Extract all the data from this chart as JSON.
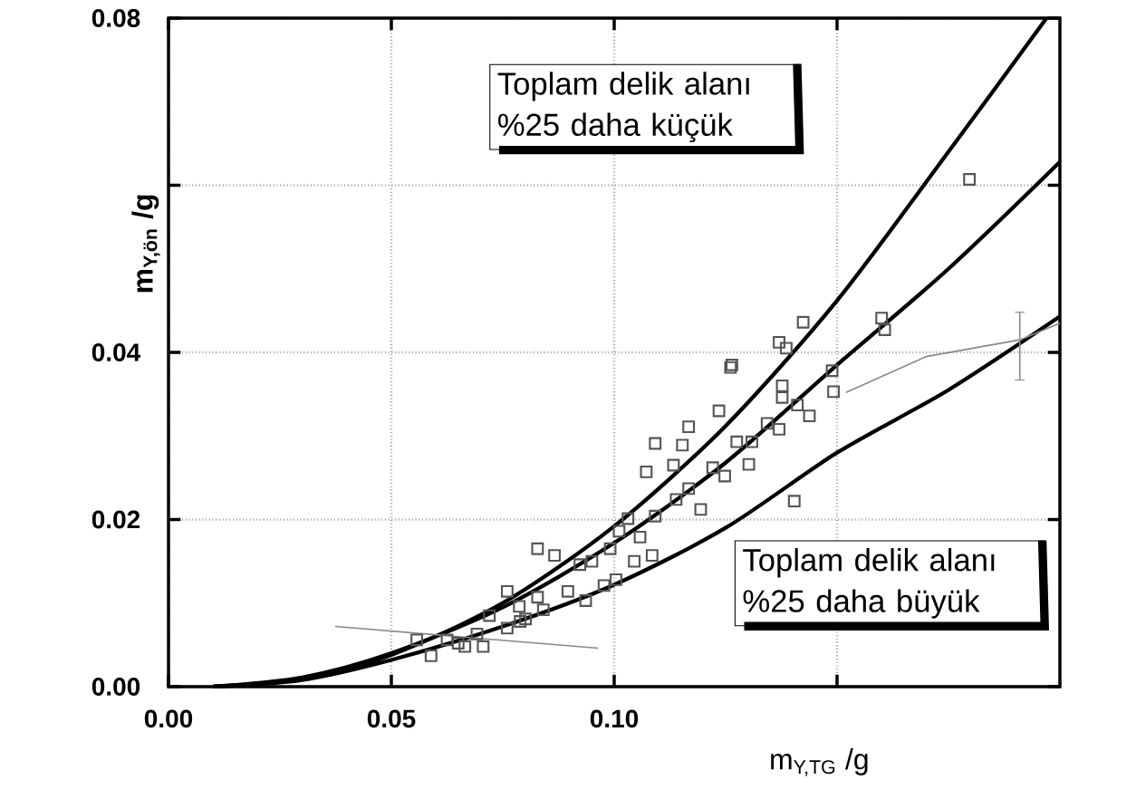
{
  "chart_data": {
    "type": "scatter",
    "xlabel": "m$_{Y,TG}$ /g",
    "ylabel": "m$_{Y,ön}$ /g",
    "xlim": [
      0,
      0.2
    ],
    "ylim": [
      0,
      0.08
    ],
    "xticks": [
      {
        "value": 0,
        "label": "0.00"
      },
      0.05,
      {
        "value": 0.1,
        "label": "0.10"
      },
      {
        "value": 0.15,
        "label": null
      }
    ],
    "yticks": [
      {
        "value": 0,
        "label": "0.00"
      },
      0.02,
      0.04,
      {
        "value": 0.06,
        "label": null
      },
      0.08
    ],
    "grid": true,
    "annotations": [
      "Toplam delik alanı %25 daha küçük",
      "Toplam delik alanı %25 daha büyük"
    ],
    "series": [
      {
        "marker": "square",
        "color": "#555555",
        "x": [
          0.1424,
          0.16,
          0.1607,
          0.137,
          0.1386,
          0.1489,
          0.1261,
          0.1377,
          0.1377,
          0.1411,
          0.1438,
          0.1235,
          0.1167,
          0.1092,
          0.1153,
          0.1072,
          0.1133,
          0.1221,
          0.1275,
          0.1309,
          0.1343,
          0.137,
          0.1302,
          0.1248,
          0.1167,
          0.1139,
          0.1092,
          0.1194,
          0.1404,
          0.1492,
          0.1031,
          0.1011,
          0.1058,
          0.1085,
          0.0991,
          0.095,
          0.0828,
          0.0866,
          0.0923,
          0.1004,
          0.076,
          0.0828,
          0.0896,
          0.0936,
          0.0801,
          0.072,
          0.076,
          0.0692,
          0.0625,
          0.0557,
          0.0665,
          0.0706,
          0.0841,
          0.0787,
          0.1045,
          0.0977,
          0.1797,
          0.1264,
          0.0589,
          0.065,
          0.0789
        ],
        "values": [
          0.0436,
          0.0441,
          0.0427,
          0.0412,
          0.0405,
          0.0378,
          0.0382,
          0.036,
          0.0346,
          0.0337,
          0.0324,
          0.033,
          0.0311,
          0.0291,
          0.0289,
          0.0257,
          0.0265,
          0.0262,
          0.0293,
          0.0293,
          0.0315,
          0.0308,
          0.0266,
          0.0252,
          0.0237,
          0.0224,
          0.0204,
          0.0212,
          0.0222,
          0.0353,
          0.0201,
          0.0186,
          0.0179,
          0.0157,
          0.0165,
          0.015,
          0.0165,
          0.0157,
          0.0146,
          0.0128,
          0.0114,
          0.0107,
          0.0114,
          0.0103,
          0.0081,
          0.0085,
          0.007,
          0.0063,
          0.0056,
          0.0056,
          0.0048,
          0.0048,
          0.0092,
          0.0096,
          0.015,
          0.0121,
          0.0607,
          0.0385,
          0.0037,
          0.0052,
          0.0078
        ]
      },
      {
        "type": "line",
        "marker": "none",
        "color": "#000000",
        "x": [
          0.01,
          0.03,
          0.05,
          0.075,
          0.1,
          0.125,
          0.15,
          0.175,
          0.197
        ],
        "values": [
          0,
          0.001,
          0.0038,
          0.01,
          0.0192,
          0.0312,
          0.0462,
          0.064,
          0.08
        ]
      },
      {
        "type": "line",
        "marker": "none",
        "color": "#000000",
        "x": [
          0.01,
          0.03,
          0.05,
          0.075,
          0.1,
          0.125,
          0.15,
          0.175,
          0.2
        ],
        "values": [
          0,
          0.0011,
          0.004,
          0.0095,
          0.0172,
          0.0268,
          0.0385,
          0.05,
          0.0628
        ]
      },
      {
        "type": "line",
        "marker": "none",
        "color": "#000000",
        "x": [
          0.01,
          0.03,
          0.05,
          0.075,
          0.1,
          0.125,
          0.15,
          0.175,
          0.2
        ],
        "values": [
          0,
          0.0008,
          0.0032,
          0.0072,
          0.0122,
          0.019,
          0.028,
          0.0355,
          0.0443
        ]
      },
      {
        "type": "line",
        "marker": "none",
        "color": "#888888",
        "x": [
          0.0374,
          0.0964
        ],
        "values": [
          0.0072,
          0.0046
        ]
      },
      {
        "type": "line",
        "marker": "none",
        "color": "#888888",
        "x": [
          0.152,
          0.17,
          0.191,
          0.2
        ],
        "values": [
          0.0352,
          0.0395,
          0.0415,
          0.0435
        ],
        "errors": [
          null,
          null,
          [
            0.0367,
            0.0448
          ],
          null
        ]
      }
    ]
  }
}
